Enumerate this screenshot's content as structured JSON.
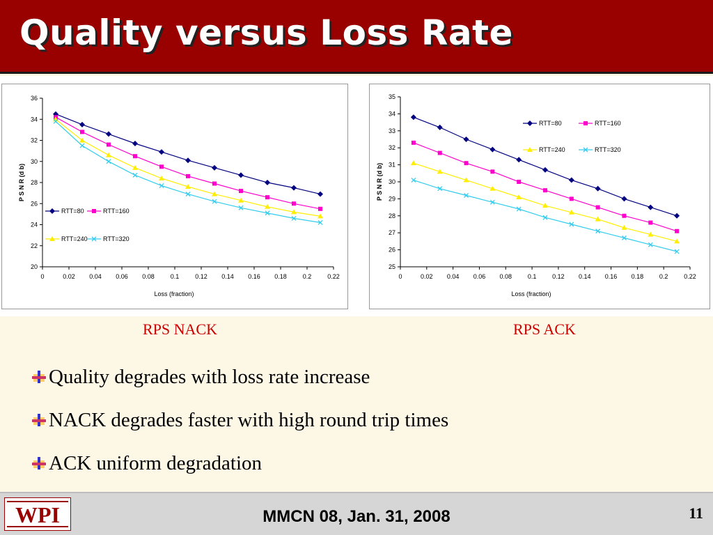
{
  "slide": {
    "title": "Quality versus Loss Rate",
    "captions": [
      "RPS NACK",
      "RPS ACK"
    ],
    "bullets": [
      "Quality degrades with loss rate increase",
      "NACK degrades faster with high round trip times",
      "ACK uniform degradation"
    ],
    "footer": "MMCN 08, Jan. 31, 2008",
    "page_number": "11",
    "logo_text": "WPI"
  },
  "colors": {
    "title_bar": "#990000",
    "caption": "#cc0000",
    "background": "#fdf8e6"
  },
  "chart_data": [
    {
      "type": "line",
      "caption": "RPS NACK",
      "xlabel": "Loss (fraction)",
      "ylabel": "P S N R (d b)",
      "xlim": [
        0,
        0.22
      ],
      "ylim": [
        20,
        36
      ],
      "xticks": [
        0,
        0.02,
        0.04,
        0.06,
        0.08,
        0.1,
        0.12,
        0.14,
        0.16,
        0.18,
        0.2,
        0.22
      ],
      "xtick_labels": [
        "0",
        "0.02",
        "0.04",
        "0.06",
        "0.08",
        "0.1",
        "0.12",
        "0.14",
        "0.16",
        "0.18",
        "0.2",
        "0.22"
      ],
      "yticks": [
        20,
        22,
        24,
        26,
        28,
        30,
        32,
        34,
        36
      ],
      "ytick_labels": [
        "20",
        "22",
        "24",
        "26",
        "28",
        "30",
        "32",
        "34",
        "36"
      ],
      "grid": false,
      "legend_position": "lower-left",
      "x": [
        0.01,
        0.03,
        0.05,
        0.07,
        0.09,
        0.11,
        0.13,
        0.15,
        0.17,
        0.19,
        0.21
      ],
      "series": [
        {
          "name": "RTT=80",
          "color": "#000080",
          "marker": "diamond",
          "values": [
            34.5,
            33.5,
            32.6,
            31.7,
            30.9,
            30.1,
            29.4,
            28.7,
            28.0,
            27.5,
            26.9
          ]
        },
        {
          "name": "RTT=160",
          "color": "#ff00cc",
          "marker": "square",
          "values": [
            34.2,
            32.8,
            31.6,
            30.5,
            29.5,
            28.6,
            27.9,
            27.2,
            26.6,
            26.0,
            25.5
          ]
        },
        {
          "name": "RTT=240",
          "color": "#ffee00",
          "marker": "triangle",
          "values": [
            34.0,
            32.0,
            30.6,
            29.4,
            28.4,
            27.6,
            26.9,
            26.3,
            25.7,
            25.2,
            24.8
          ]
        },
        {
          "name": "RTT=320",
          "color": "#33ccee",
          "marker": "x",
          "values": [
            33.8,
            31.5,
            30.0,
            28.7,
            27.7,
            26.9,
            26.2,
            25.6,
            25.1,
            24.6,
            24.2
          ]
        }
      ]
    },
    {
      "type": "line",
      "caption": "RPS ACK",
      "xlabel": "Loss (fraction)",
      "ylabel": "P S N R (d b)",
      "xlim": [
        0,
        0.22
      ],
      "ylim": [
        25,
        35
      ],
      "xticks": [
        0,
        0.02,
        0.04,
        0.06,
        0.08,
        0.1,
        0.12,
        0.14,
        0.16,
        0.18,
        0.2,
        0.22
      ],
      "xtick_labels": [
        "0",
        "0.02",
        "0.04",
        "0.06",
        "0.08",
        "0.1",
        "0.12",
        "0.14",
        "0.16",
        "0.18",
        "0.2",
        "0.22"
      ],
      "yticks": [
        25,
        26,
        27,
        28,
        29,
        30,
        31,
        32,
        33,
        34,
        35
      ],
      "ytick_labels": [
        "25",
        "26",
        "27",
        "28",
        "29",
        "30",
        "31",
        "32",
        "33",
        "34",
        "35"
      ],
      "grid": false,
      "legend_position": "top-right",
      "x": [
        0.01,
        0.03,
        0.05,
        0.07,
        0.09,
        0.11,
        0.13,
        0.15,
        0.17,
        0.19,
        0.21
      ],
      "series": [
        {
          "name": "RTT=80",
          "color": "#000080",
          "marker": "diamond",
          "values": [
            33.8,
            33.2,
            32.5,
            31.9,
            31.3,
            30.7,
            30.1,
            29.6,
            29.0,
            28.5,
            28.0
          ]
        },
        {
          "name": "RTT=160",
          "color": "#ff00cc",
          "marker": "square",
          "values": [
            32.3,
            31.7,
            31.1,
            30.6,
            30.0,
            29.5,
            29.0,
            28.5,
            28.0,
            27.6,
            27.1
          ]
        },
        {
          "name": "RTT=240",
          "color": "#ffee00",
          "marker": "triangle",
          "values": [
            31.1,
            30.6,
            30.1,
            29.6,
            29.1,
            28.6,
            28.2,
            27.8,
            27.3,
            26.9,
            26.5
          ]
        },
        {
          "name": "RTT=320",
          "color": "#33ccee",
          "marker": "x",
          "values": [
            30.1,
            29.6,
            29.2,
            28.8,
            28.4,
            27.9,
            27.5,
            27.1,
            26.7,
            26.3,
            25.9
          ]
        }
      ]
    }
  ]
}
